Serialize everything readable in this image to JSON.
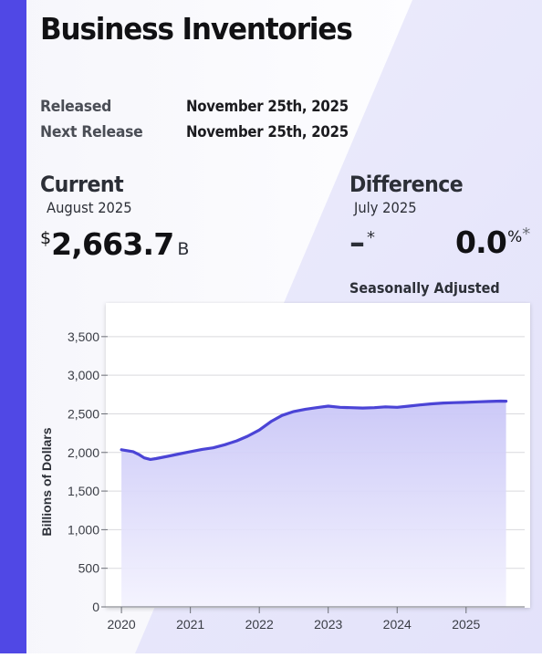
{
  "header": {
    "title": "Business Inventories"
  },
  "release": {
    "released_label": "Released",
    "released_value": "November 25th, 2025",
    "next_label": "Next Release",
    "next_value": "November 25th, 2025"
  },
  "current": {
    "heading": "Current",
    "period": "August 2025",
    "currency_symbol": "$",
    "value": "2,663.7",
    "unit": "B"
  },
  "difference": {
    "heading": "Difference",
    "period": "July 2025",
    "change_value": "–",
    "change_star": "*",
    "percent_value": "0.0",
    "percent_symbol": "%",
    "percent_star": "*",
    "note": "Seasonally Adjusted"
  },
  "colors": {
    "accent": "#5048e5",
    "line": "#4b44d6",
    "fill_top": "#c9c6f7",
    "fill_bottom": "#f3f2fe"
  },
  "chart_data": {
    "type": "area",
    "title": "",
    "xlabel": "",
    "ylabel": "Billions of Dollars",
    "xlim": [
      2019.8,
      2025.85
    ],
    "ylim": [
      0,
      3900
    ],
    "x_ticks": [
      2020,
      2021,
      2022,
      2023,
      2024,
      2025
    ],
    "x_tick_labels": [
      "2020",
      "2021",
      "2022",
      "2023",
      "2024",
      "2025"
    ],
    "y_ticks": [
      0,
      500,
      1000,
      1500,
      2000,
      2500,
      3000,
      3500
    ],
    "y_tick_labels": [
      "0",
      "500",
      "1,000",
      "1,500",
      "2,000",
      "2,500",
      "3,000",
      "3,500"
    ],
    "grid": true,
    "legend": "none",
    "series": [
      {
        "x": [
          2020.0,
          2020.17,
          2020.25,
          2020.33,
          2020.42,
          2020.5,
          2020.67,
          2020.83,
          2021.0,
          2021.17,
          2021.33,
          2021.5,
          2021.67,
          2021.83,
          2022.0,
          2022.17,
          2022.33,
          2022.5,
          2022.67,
          2022.83,
          2023.0,
          2023.17,
          2023.33,
          2023.5,
          2023.67,
          2023.83,
          2024.0,
          2024.17,
          2024.33,
          2024.5,
          2024.67,
          2024.83,
          2025.0,
          2025.17,
          2025.33,
          2025.5,
          2025.58
        ],
        "values": [
          2035,
          2010,
          1975,
          1930,
          1910,
          1920,
          1950,
          1980,
          2010,
          2040,
          2060,
          2100,
          2150,
          2210,
          2290,
          2400,
          2480,
          2530,
          2560,
          2580,
          2600,
          2585,
          2580,
          2575,
          2580,
          2590,
          2585,
          2600,
          2615,
          2630,
          2640,
          2645,
          2650,
          2655,
          2660,
          2665,
          2663.7
        ]
      }
    ]
  }
}
